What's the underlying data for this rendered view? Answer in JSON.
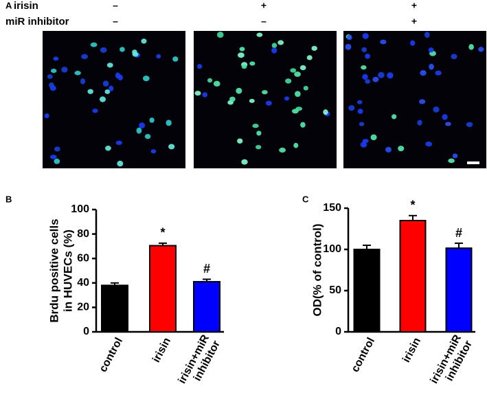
{
  "panel_a": {
    "label": "A",
    "treatments": [
      {
        "name": "irisin",
        "signs": [
          "–",
          "+",
          "+"
        ]
      },
      {
        "name": "miR inhibitor",
        "signs": [
          "–",
          "–",
          "+"
        ]
      }
    ]
  },
  "chart_data": [
    {
      "type": "bar",
      "panel": "B",
      "ylabel": [
        "Brdu positive cells",
        "in HUVECs (%)"
      ],
      "categories": [
        "control",
        "irisin",
        "irisin+miR inhibitor"
      ],
      "values": [
        38,
        70.5,
        41
      ],
      "errors": [
        2,
        2,
        2
      ],
      "annotations": [
        null,
        "*",
        "#"
      ],
      "colors": [
        "#000000",
        "#ff0000",
        "#0000ff"
      ],
      "ylim": [
        0,
        100
      ],
      "yticks": [
        0,
        20,
        40,
        60,
        80,
        100
      ]
    },
    {
      "type": "bar",
      "panel": "C",
      "ylabel": [
        "OD(% of control)"
      ],
      "categories": [
        "control",
        "irisin",
        "irisin+miR inhibitor"
      ],
      "values": [
        100,
        135,
        101.5
      ],
      "errors": [
        5,
        6,
        6
      ],
      "annotations": [
        null,
        "*",
        "#"
      ],
      "colors": [
        "#000000",
        "#ff0000",
        "#0000ff"
      ],
      "ylim": [
        0,
        150
      ],
      "yticks": [
        0,
        50,
        100,
        150
      ]
    }
  ]
}
